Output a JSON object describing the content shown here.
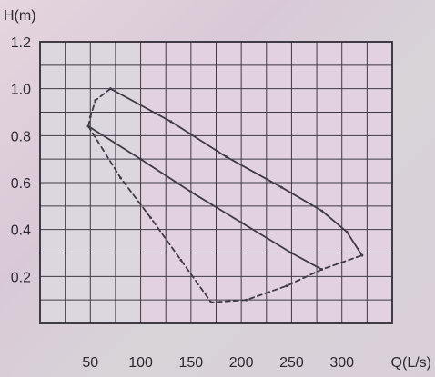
{
  "chart_data": {
    "type": "line",
    "title": "",
    "xlabel": "Q(L/s)",
    "ylabel": "H(m)",
    "xlim": [
      0,
      350
    ],
    "ylim": [
      0,
      1.2
    ],
    "x_ticks": [
      50,
      100,
      150,
      200,
      250,
      300
    ],
    "x_tick_labels": [
      "50",
      "100",
      "150",
      "200",
      "250",
      "300"
    ],
    "y_ticks": [
      0.2,
      0.4,
      0.6,
      0.8,
      1.0,
      1.2
    ],
    "y_tick_labels": [
      "0.2",
      "0.4",
      "0.6",
      "0.8",
      "1.0",
      "1.2"
    ],
    "grid": true,
    "legend": false,
    "series": [
      {
        "style": "solid",
        "color": "#3e3a46",
        "x": [
          70,
          130,
          185,
          240,
          280,
          305,
          320
        ],
        "y": [
          1.0,
          0.86,
          0.71,
          0.58,
          0.48,
          0.39,
          0.29
        ]
      },
      {
        "style": "solid",
        "color": "#3e3a46",
        "x": [
          48,
          100,
          150,
          200,
          250,
          280
        ],
        "y": [
          0.84,
          0.7,
          0.56,
          0.43,
          0.3,
          0.23
        ]
      },
      {
        "style": "dashed",
        "color": "#3e3a46",
        "x": [
          70,
          55,
          50,
          48
        ],
        "y": [
          1.0,
          0.95,
          0.88,
          0.84
        ]
      },
      {
        "style": "dashed",
        "color": "#3e3a46",
        "x": [
          48,
          80,
          110,
          140,
          170,
          205,
          245,
          280,
          320
        ],
        "y": [
          0.84,
          0.62,
          0.45,
          0.27,
          0.09,
          0.1,
          0.16,
          0.23,
          0.29
        ]
      }
    ]
  }
}
